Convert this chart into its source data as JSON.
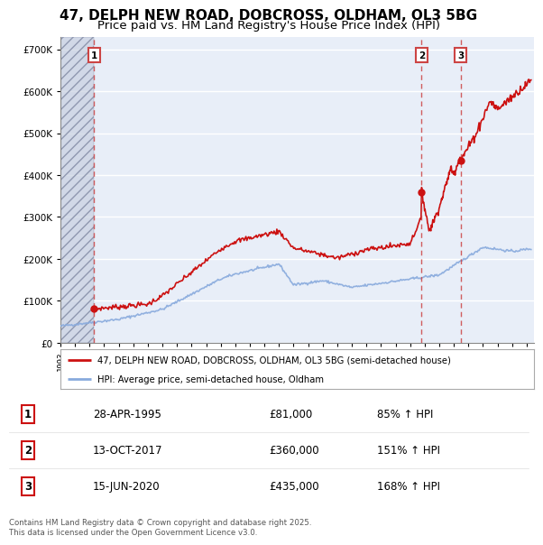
{
  "title_line1": "47, DELPH NEW ROAD, DOBCROSS, OLDHAM, OL3 5BG",
  "title_line2": "Price paid vs. HM Land Registry's House Price Index (HPI)",
  "legend_entry1": "47, DELPH NEW ROAD, DOBCROSS, OLDHAM, OL3 5BG (semi-detached house)",
  "legend_entry2": "HPI: Average price, semi-detached house, Oldham",
  "transactions": [
    {
      "num": "1",
      "date": "28-APR-1995",
      "price": "£81,000",
      "hpi_pct": "85% ↑ HPI",
      "year": 1995.32,
      "price_val": 81000
    },
    {
      "num": "2",
      "date": "13-OCT-2017",
      "price": "£360,000",
      "hpi_pct": "151% ↑ HPI",
      "year": 2017.79,
      "price_val": 360000
    },
    {
      "num": "3",
      "date": "15-JUN-2020",
      "price": "£435,000",
      "hpi_pct": "168% ↑ HPI",
      "year": 2020.46,
      "price_val": 435000
    }
  ],
  "footer": "Contains HM Land Registry data © Crown copyright and database right 2025.\nThis data is licensed under the Open Government Licence v3.0.",
  "ylim": [
    0,
    730000
  ],
  "yticks": [
    0,
    100000,
    200000,
    300000,
    400000,
    500000,
    600000,
    700000
  ],
  "xlim_min": 1993,
  "xlim_max": 2025.5,
  "hatch_end": 1995.32,
  "background_color": "#ffffff",
  "plot_bg_color": "#e8eef8",
  "hatch_color": "#c8d0e0",
  "grid_color": "#ffffff",
  "red_line_color": "#cc1111",
  "blue_line_color": "#88aadd",
  "dashed_red_color": "#cc4444",
  "title_fontsize": 11,
  "subtitle_fontsize": 9.5
}
